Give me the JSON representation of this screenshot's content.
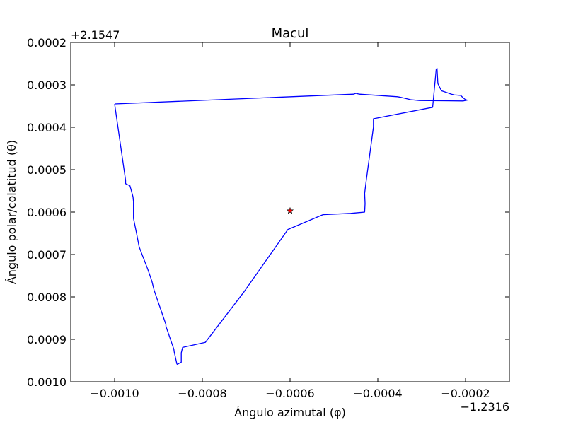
{
  "chart_data": {
    "type": "line",
    "title": "Macul",
    "xlabel": "Ángulo azimutal (φ)",
    "ylabel": "Ángulo polar/colatitud (θ)",
    "x_offset_label": "−1.2316",
    "y_offset_label": "+2.1547",
    "xlim": [
      -0.0011,
      -0.0001
    ],
    "ylim": [
      0.001,
      0.0002
    ],
    "x_ticks": [
      -0.001,
      -0.0008,
      -0.0006,
      -0.0004,
      -0.0002
    ],
    "x_tick_labels": [
      "−0.0010",
      "−0.0008",
      "−0.0006",
      "−0.0004",
      "−0.0002"
    ],
    "y_ticks": [
      0.0002,
      0.0003,
      0.0004,
      0.0005,
      0.0006,
      0.0007,
      0.0008,
      0.0009,
      0.001
    ],
    "y_tick_labels": [
      "0.0002",
      "0.0003",
      "0.0004",
      "0.0005",
      "0.0006",
      "0.0007",
      "0.0008",
      "0.0009",
      "0.0010"
    ],
    "grid": false,
    "series": [
      {
        "color": "#0000ff",
        "x": [
          -0.001,
          -0.000455,
          -0.00045,
          -0.000442,
          -0.00037,
          -0.000355,
          -0.000345,
          -0.000325,
          -0.000305,
          -0.000205,
          -0.000196,
          -0.0002,
          -0.000205,
          -0.000211,
          -0.000222,
          -0.000225,
          -0.000232,
          -0.000235,
          -0.000255,
          -0.000263,
          -0.000265,
          -0.000267,
          -0.000275,
          -0.00041,
          -0.00041,
          -0.000427,
          -0.00043,
          -0.000429,
          -0.00043,
          -0.000462,
          -0.000525,
          -0.000605,
          -0.000705,
          -0.000793,
          -0.000845,
          -0.000848,
          -0.000848,
          -0.000852,
          -0.000857,
          -0.000858,
          -0.000864,
          -0.000865,
          -0.000883,
          -0.000883,
          -0.00091,
          -0.000915,
          -0.000925,
          -0.000936,
          -0.000944,
          -0.00095,
          -0.000957,
          -0.000957,
          -0.000958,
          -0.000963,
          -0.000965,
          -0.000975,
          -0.000975,
          -0.001
        ],
        "y": [
          0.000345,
          0.000322,
          0.00032,
          0.000322,
          0.000327,
          0.000328,
          0.00033,
          0.000335,
          0.000337,
          0.000338,
          0.000336,
          0.000335,
          0.000331,
          0.000325,
          0.000324,
          0.000324,
          0.000322,
          0.000321,
          0.000314,
          0.000297,
          0.000261,
          0.000264,
          0.000353,
          0.00038,
          0.0004,
          0.00053,
          0.000556,
          0.00058,
          0.0006,
          0.000603,
          0.000606,
          0.000641,
          0.000788,
          0.000907,
          0.000919,
          0.000932,
          0.000954,
          0.000956,
          0.000959,
          0.000958,
          0.00093,
          0.000923,
          0.000869,
          0.000865,
          0.000784,
          0.000763,
          0.000733,
          0.000704,
          0.000682,
          0.00065,
          0.000615,
          0.000575,
          0.000564,
          0.000545,
          0.000538,
          0.000533,
          0.000525,
          0.000345
        ]
      }
    ],
    "marker": {
      "x": -0.0006,
      "y": 0.000597,
      "color": "#ff0000",
      "shape": "star"
    }
  }
}
